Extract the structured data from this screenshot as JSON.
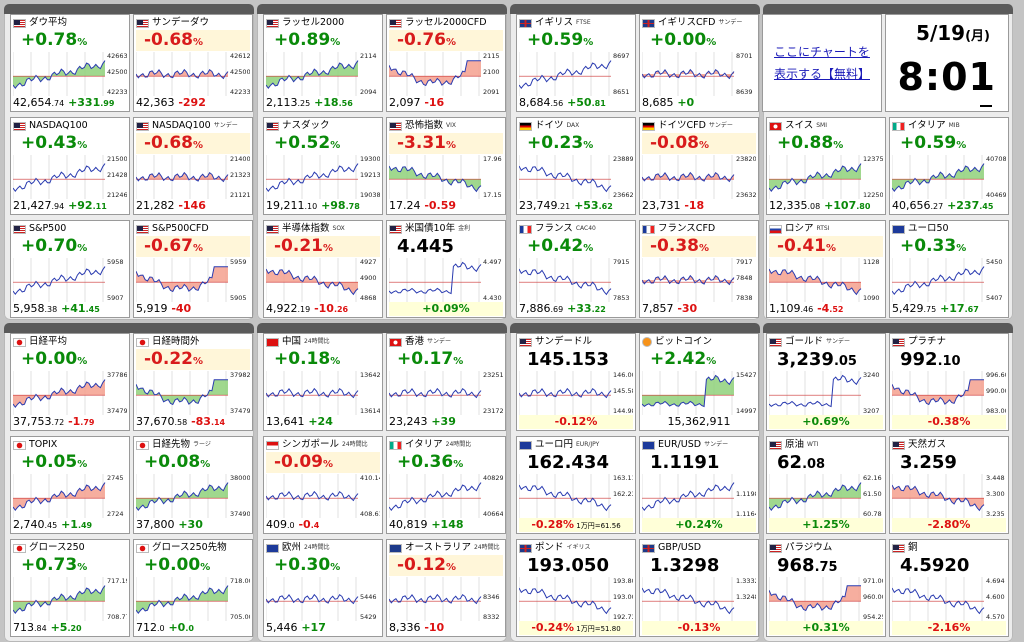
{
  "clock": {
    "date": "5/19",
    "weekday": "(月)",
    "time": "8:01"
  },
  "chart_link": {
    "line1": "ここにチャートを",
    "line2": "表示する【無料】"
  },
  "tiles": [
    {
      "name": "ダウ平均",
      "sub": "",
      "flag": "us",
      "chg": "+0.78",
      "dir": "up",
      "price_int": "42,654",
      "price_frac": ".74",
      "diff": "+331",
      "diff_frac": ".99",
      "diff_dir": "up",
      "trend": "up",
      "fill": "green",
      "y_hi": "42663",
      "y_mid": "42500",
      "y_lo": "42233"
    },
    {
      "name": "サンデーダウ",
      "sub": "",
      "flag": "us",
      "chg": "-0.68",
      "dir": "down",
      "price_int": "42,363",
      "price_frac": "",
      "diff": "-292",
      "diff_frac": "",
      "diff_dir": "down",
      "trend": "flat",
      "fill": "red",
      "y_hi": "42612",
      "y_mid": "42500",
      "y_lo": "42233"
    },
    {
      "name": "ラッセル2000",
      "sub": "",
      "flag": "us",
      "chg": "+0.89",
      "dir": "up",
      "price_int": "2,113",
      "price_frac": ".25",
      "diff": "+18",
      "diff_frac": ".56",
      "diff_dir": "up",
      "trend": "up",
      "fill": "green",
      "y_hi": "2114",
      "y_mid": "",
      "y_lo": "2094"
    },
    {
      "name": "ラッセル2000CFD",
      "sub": "",
      "flag": "us",
      "chg": "-0.76",
      "dir": "down",
      "price_int": "2,097",
      "price_frac": "",
      "diff": "-16",
      "diff_frac": "",
      "diff_dir": "down",
      "trend": "dip",
      "fill": "red",
      "y_hi": "2115",
      "y_mid": "2100",
      "y_lo": "2091"
    },
    {
      "name": "イギリス",
      "sub": "FTSE",
      "flag": "gb",
      "chg": "+0.59",
      "dir": "up",
      "price_int": "8,684",
      "price_frac": ".56",
      "diff": "+50",
      "diff_frac": ".81",
      "diff_dir": "up",
      "trend": "up",
      "fill": "none",
      "y_hi": "8697",
      "y_mid": "",
      "y_lo": "8651"
    },
    {
      "name": "イギリスCFD",
      "sub": "サンデー",
      "flag": "gb",
      "chg": "+0.00",
      "dir": "flat",
      "price_int": "8,685",
      "price_frac": "",
      "diff": "+0",
      "diff_frac": "",
      "diff_dir": "up",
      "trend": "flat",
      "fill": "redlow",
      "y_hi": "8701",
      "y_mid": "",
      "y_lo": "8639"
    },
    {
      "name": "NASDAQ100",
      "sub": "",
      "flag": "us",
      "chg": "+0.43",
      "dir": "up",
      "price_int": "21,427",
      "price_frac": ".94",
      "diff": "+92",
      "diff_frac": ".11",
      "diff_dir": "up",
      "trend": "up",
      "fill": "none",
      "y_hi": "21500",
      "y_mid": "21428",
      "y_lo": "21246"
    },
    {
      "name": "NASDAQ100",
      "sub": "サンデー",
      "flag": "us",
      "chg": "-0.68",
      "dir": "down",
      "price_int": "21,282",
      "price_frac": "",
      "diff": "-146",
      "diff_frac": "",
      "diff_dir": "down",
      "trend": "flat",
      "fill": "red",
      "y_hi": "21400",
      "y_mid": "21323",
      "y_lo": "21121"
    },
    {
      "name": "ナスダック",
      "sub": "",
      "flag": "us",
      "chg": "+0.52",
      "dir": "up",
      "price_int": "19,211",
      "price_frac": ".10",
      "diff": "+98",
      "diff_frac": ".78",
      "diff_dir": "up",
      "trend": "up",
      "fill": "none",
      "y_hi": "19300",
      "y_mid": "19213",
      "y_lo": "19038"
    },
    {
      "name": "恐怖指数",
      "sub": "VIX",
      "flag": "us",
      "chg": "-3.31",
      "dir": "down",
      "price_int": "17.24",
      "price_frac": "",
      "diff": "-0.59",
      "diff_frac": "",
      "diff_dir": "down",
      "trend": "down",
      "fill": "green",
      "y_hi": "17.96",
      "y_mid": "",
      "y_lo": "17.15"
    },
    {
      "name": "ドイツ",
      "sub": "DAX",
      "flag": "de",
      "chg": "+0.23",
      "dir": "up",
      "price_int": "23,749",
      "price_frac": ".21",
      "diff": "+53",
      "diff_frac": ".62",
      "diff_dir": "up",
      "trend": "down",
      "fill": "none",
      "y_hi": "23889",
      "y_mid": "",
      "y_lo": "23662"
    },
    {
      "name": "ドイツCFD",
      "sub": "サンデー",
      "flag": "de",
      "chg": "-0.08",
      "dir": "down",
      "price_int": "23,731",
      "price_frac": "",
      "diff": "-18",
      "diff_frac": "",
      "diff_dir": "down",
      "trend": "flat",
      "fill": "red",
      "y_hi": "23820",
      "y_mid": "",
      "y_lo": "23632"
    },
    {
      "name": "S&P500",
      "sub": "",
      "flag": "us",
      "chg": "+0.70",
      "dir": "up",
      "price_int": "5,958",
      "price_frac": ".38",
      "diff": "+41",
      "diff_frac": ".45",
      "diff_dir": "up",
      "trend": "up",
      "fill": "none",
      "y_hi": "5958",
      "y_mid": "",
      "y_lo": "5907"
    },
    {
      "name": "S&P500CFD",
      "sub": "",
      "flag": "us",
      "chg": "-0.67",
      "dir": "down",
      "price_int": "5,919",
      "price_frac": "",
      "diff": "-40",
      "diff_frac": "",
      "diff_dir": "down",
      "trend": "dip",
      "fill": "red",
      "y_hi": "5959",
      "y_mid": "",
      "y_lo": "5905"
    },
    {
      "name": "半導体指数",
      "sub": "SOX",
      "flag": "us",
      "chg": "-0.21",
      "dir": "down",
      "price_int": "4,922",
      "price_frac": ".19",
      "diff": "-10",
      "diff_frac": ".26",
      "diff_dir": "down",
      "trend": "down",
      "fill": "red",
      "y_hi": "4927",
      "y_mid": "4900",
      "y_lo": "4868"
    },
    {
      "name": "米国債10年",
      "sub": "金利",
      "flag": "us",
      "chg": "4.445",
      "dir": "price",
      "price_int": "",
      "price_frac": "",
      "diff": "+0.09%",
      "diff_frac": "",
      "diff_dir": "up",
      "trend": "spike",
      "fill": "none",
      "y_hi": "4.497",
      "y_mid": "",
      "y_lo": "4.430"
    },
    {
      "name": "フランス",
      "sub": "CAC40",
      "flag": "fr",
      "chg": "+0.42",
      "dir": "up",
      "price_int": "7,886",
      "price_frac": ".69",
      "diff": "+33",
      "diff_frac": ".22",
      "diff_dir": "up",
      "trend": "down",
      "fill": "none",
      "y_hi": "7915",
      "y_mid": "",
      "y_lo": "7853"
    },
    {
      "name": "フランスCFD",
      "sub": "",
      "flag": "fr",
      "chg": "-0.38",
      "dir": "down",
      "price_int": "7,857",
      "price_frac": "",
      "diff": "-30",
      "diff_frac": "",
      "diff_dir": "down",
      "trend": "flat",
      "fill": "redlow",
      "y_hi": "7917",
      "y_mid": "7848",
      "y_lo": "7838"
    },
    {
      "name": "スイス",
      "sub": "SMI",
      "flag": "ch",
      "chg": "+0.88",
      "dir": "up",
      "price_int": "12,335",
      "price_frac": ".08",
      "diff": "+107",
      "diff_frac": ".80",
      "diff_dir": "up",
      "trend": "up",
      "fill": "green",
      "y_hi": "12375",
      "y_mid": "",
      "y_lo": "12250"
    },
    {
      "name": "イタリア",
      "sub": "MIB",
      "flag": "it",
      "chg": "+0.59",
      "dir": "up",
      "price_int": "40,656",
      "price_frac": ".27",
      "diff": "+237",
      "diff_frac": ".45",
      "diff_dir": "up",
      "trend": "up",
      "fill": "green",
      "y_hi": "40708",
      "y_mid": "",
      "y_lo": "40469"
    },
    {
      "name": "ロシア",
      "sub": "RTSI",
      "flag": "ru",
      "chg": "-0.41",
      "dir": "down",
      "price_int": "1,109",
      "price_frac": ".46",
      "diff": "-4",
      "diff_frac": ".52",
      "diff_dir": "down",
      "trend": "down",
      "fill": "red",
      "y_hi": "1128",
      "y_mid": "",
      "y_lo": "1090"
    },
    {
      "name": "ユーロ50",
      "sub": "",
      "flag": "eu",
      "chg": "+0.33",
      "dir": "up",
      "price_int": "5,429",
      "price_frac": ".75",
      "diff": "+17",
      "diff_frac": ".67",
      "diff_dir": "up",
      "trend": "up",
      "fill": "none",
      "y_hi": "5450",
      "y_mid": "",
      "y_lo": "5407"
    },
    {
      "name": "日経平均",
      "sub": "",
      "flag": "jp",
      "chg": "+0.00",
      "dir": "flat",
      "price_int": "37,753",
      "price_frac": ".72",
      "diff": "-1",
      "diff_frac": ".79",
      "diff_dir": "down",
      "trend": "up",
      "fill": "red",
      "y_hi": "37786",
      "y_mid": "",
      "y_lo": "37479"
    },
    {
      "name": "日経時間外",
      "sub": "",
      "flag": "jp",
      "chg": "-0.22",
      "dir": "down",
      "price_int": "37,670",
      "price_frac": ".58",
      "diff": "-83",
      "diff_frac": ".14",
      "diff_dir": "down",
      "trend": "dip",
      "fill": "green",
      "y_hi": "37982",
      "y_mid": "",
      "y_lo": "37479"
    },
    {
      "name": "TOPIX",
      "sub": "",
      "flag": "jp",
      "chg": "+0.05",
      "dir": "up",
      "price_int": "2,740",
      "price_frac": ".45",
      "diff": "+1",
      "diff_frac": ".49",
      "diff_dir": "up",
      "trend": "up",
      "fill": "red",
      "y_hi": "2745",
      "y_mid": "",
      "y_lo": "2724"
    },
    {
      "name": "日経先物",
      "sub": "ラージ",
      "flag": "jp",
      "chg": "+0.08",
      "dir": "up",
      "price_int": "37,800",
      "price_frac": "",
      "diff": "+30",
      "diff_frac": "",
      "diff_dir": "up",
      "trend": "up",
      "fill": "green",
      "y_hi": "38000",
      "y_mid": "",
      "y_lo": "37490"
    },
    {
      "name": "グロース250",
      "sub": "",
      "flag": "jp",
      "chg": "+0.73",
      "dir": "up",
      "price_int": "713",
      "price_frac": ".84",
      "diff": "+5",
      "diff_frac": ".20",
      "diff_dir": "up",
      "trend": "up",
      "fill": "green",
      "y_hi": "717.19",
      "y_mid": "",
      "y_lo": "708.77"
    },
    {
      "name": "グロース250先物",
      "sub": "",
      "flag": "jp",
      "chg": "+0.00",
      "dir": "flat",
      "price_int": "712",
      "price_frac": ".0",
      "diff": "+0",
      "diff_frac": ".0",
      "diff_dir": "up",
      "trend": "up",
      "fill": "green",
      "y_hi": "718.00",
      "y_mid": "",
      "y_lo": "705.00"
    },
    {
      "name": "中国",
      "sub": "24時間比",
      "flag": "cn",
      "chg": "+0.18",
      "dir": "up",
      "price_int": "13,641",
      "price_frac": "",
      "diff": "+24",
      "diff_frac": "",
      "diff_dir": "up",
      "trend": "flat",
      "fill": "none",
      "y_hi": "13642",
      "y_mid": "",
      "y_lo": "13614"
    },
    {
      "name": "香港",
      "sub": "サンデー",
      "flag": "hk",
      "chg": "+0.17",
      "dir": "up",
      "price_int": "23,243",
      "price_frac": "",
      "diff": "+39",
      "diff_frac": "",
      "diff_dir": "up",
      "trend": "flat",
      "fill": "none",
      "y_hi": "23251",
      "y_mid": "",
      "y_lo": "23172"
    },
    {
      "name": "シンガポール",
      "sub": "24時間比",
      "flag": "sg",
      "chg": "-0.09",
      "dir": "down",
      "price_int": "409",
      "price_frac": ".0",
      "diff": "-0",
      "diff_frac": ".4",
      "diff_dir": "down",
      "trend": "flat",
      "fill": "none",
      "y_hi": "410.14",
      "y_mid": "",
      "y_lo": "408.61"
    },
    {
      "name": "イタリア",
      "sub": "24時間比",
      "flag": "it",
      "chg": "+0.36",
      "dir": "up",
      "price_int": "40,819",
      "price_frac": "",
      "diff": "+148",
      "diff_frac": "",
      "diff_dir": "up",
      "trend": "up",
      "fill": "none",
      "y_hi": "40829",
      "y_mid": "",
      "y_lo": "40664"
    },
    {
      "name": "欧州",
      "sub": "24時間比",
      "flag": "eu",
      "chg": "+0.30",
      "dir": "up",
      "price_int": "5,446",
      "price_frac": "",
      "diff": "+17",
      "diff_frac": "",
      "diff_dir": "up",
      "trend": "flat",
      "fill": "none",
      "y_hi": "",
      "y_mid": "5446",
      "y_lo": "5429"
    },
    {
      "name": "オーストラリア",
      "sub": "24時間比",
      "flag": "au",
      "chg": "-0.12",
      "dir": "down",
      "price_int": "8,336",
      "price_frac": "",
      "diff": "-10",
      "diff_frac": "",
      "diff_dir": "down",
      "trend": "flat",
      "fill": "none",
      "y_hi": "",
      "y_mid": "8346",
      "y_lo": "8332"
    },
    {
      "name": "サンデードル",
      "sub": "",
      "flag": "us",
      "chg": "145.153",
      "dir": "price",
      "price_int": "",
      "price_frac": "",
      "diff": "-0.12%",
      "diff_frac": "",
      "diff_dir": "down",
      "trend": "flat",
      "fill": "none",
      "y_hi": "146.00",
      "y_mid": "145.58",
      "y_lo": "144.98",
      "note": ""
    },
    {
      "name": "ビットコイン",
      "sub": "",
      "flag": "btc",
      "chg": "+2.42",
      "dir": "up",
      "price_int": "15,362,911",
      "price_frac": "",
      "diff": "",
      "diff_frac": "",
      "diff_dir": "up",
      "trend": "spike",
      "fill": "green",
      "y_hi": "15427",
      "y_mid": "",
      "y_lo": "14997"
    },
    {
      "name": "ユーロ円",
      "sub": "EUR/JPY",
      "flag": "eu",
      "chg": "162.434",
      "dir": "price",
      "price_int": "",
      "price_frac": "",
      "diff": "-0.28%",
      "diff_frac": "",
      "diff_dir": "down",
      "trend": "down",
      "fill": "none",
      "y_hi": "163.11",
      "y_mid": "162.23",
      "y_lo": "",
      "note": "1万円=61.56"
    },
    {
      "name": "EUR/USD",
      "sub": "サンデー",
      "flag": "eu",
      "chg": "1.1191",
      "dir": "price",
      "price_int": "",
      "price_frac": "",
      "diff": "+0.24%",
      "diff_frac": "",
      "diff_dir": "up",
      "trend": "up",
      "fill": "none",
      "y_hi": "",
      "y_mid": "1.1198",
      "y_lo": "1.1164",
      "note": ""
    },
    {
      "name": "ポンド",
      "sub": "イギリス",
      "flag": "gb",
      "chg": "193.050",
      "dir": "price",
      "price_int": "",
      "price_frac": "",
      "diff": "-0.24%",
      "diff_frac": "",
      "diff_dir": "down",
      "trend": "down",
      "fill": "none",
      "y_hi": "193.80",
      "y_mid": "193.00",
      "y_lo": "192.73",
      "note": "1万円=51.80"
    },
    {
      "name": "GBP/USD",
      "sub": "",
      "flag": "gb",
      "chg": "1.3298",
      "dir": "price",
      "price_int": "",
      "price_frac": "",
      "diff": "-0.13%",
      "diff_frac": "",
      "diff_dir": "down",
      "trend": "down",
      "fill": "none",
      "y_hi": "1.3332",
      "y_mid": "1.3248",
      "y_lo": "",
      "note": ""
    },
    {
      "name": "ゴールド",
      "sub": "サンデー",
      "flag": "us",
      "chg": "3,239",
      "chg_frac": ".05",
      "dir": "price",
      "price_int": "",
      "price_frac": "",
      "diff": "+0.69%",
      "diff_frac": "",
      "diff_dir": "up",
      "trend": "spike",
      "fill": "none",
      "y_hi": "3240",
      "y_mid": "",
      "y_lo": "3207",
      "note": ""
    },
    {
      "name": "プラチナ",
      "sub": "",
      "flag": "us",
      "chg": "992",
      "chg_frac": ".10",
      "dir": "price",
      "price_int": "",
      "price_frac": "",
      "diff": "-0.38%",
      "diff_frac": "",
      "diff_dir": "down",
      "trend": "dip",
      "fill": "red",
      "y_hi": "996.60",
      "y_mid": "990.00",
      "y_lo": "983.00",
      "note": ""
    },
    {
      "name": "原油",
      "sub": "WTI",
      "flag": "us",
      "chg": "62",
      "chg_frac": ".08",
      "dir": "price",
      "price_int": "",
      "price_frac": "",
      "diff": "+1.25%",
      "diff_frac": "",
      "diff_dir": "up",
      "trend": "up",
      "fill": "green",
      "y_hi": "62.16",
      "y_mid": "61.50",
      "y_lo": "60.78",
      "note": ""
    },
    {
      "name": "天然ガス",
      "sub": "",
      "flag": "us",
      "chg": "3.259",
      "dir": "price",
      "price_int": "",
      "price_frac": "",
      "diff": "-2.80%",
      "diff_frac": "",
      "diff_dir": "down",
      "trend": "down",
      "fill": "red",
      "y_hi": "3.448",
      "y_mid": "3.300",
      "y_lo": "3.235",
      "note": ""
    },
    {
      "name": "パラジウム",
      "sub": "",
      "flag": "us",
      "chg": "968",
      "chg_frac": ".75",
      "dir": "price",
      "price_int": "",
      "price_frac": "",
      "diff": "+0.31%",
      "diff_frac": "",
      "diff_dir": "up",
      "trend": "dip",
      "fill": "red",
      "y_hi": "971.00",
      "y_mid": "960.00",
      "y_lo": "954.25",
      "note": ""
    },
    {
      "name": "銅",
      "sub": "",
      "flag": "us",
      "chg": "4.5920",
      "dir": "price",
      "price_int": "",
      "price_frac": "",
      "diff": "-2.16%",
      "diff_frac": "",
      "diff_dir": "down",
      "trend": "down",
      "fill": "none",
      "y_hi": "4.694",
      "y_mid": "4.600",
      "y_lo": "4.570",
      "note": ""
    }
  ]
}
